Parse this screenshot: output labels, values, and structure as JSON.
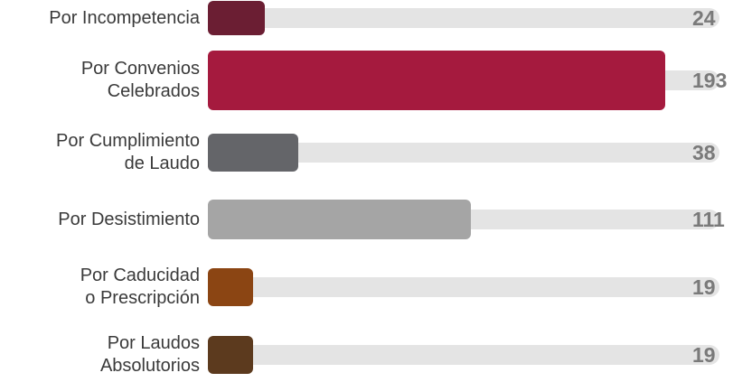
{
  "chart_data": {
    "type": "bar",
    "orientation": "horizontal",
    "categories": [
      "Por  Incompetencia",
      "Por Convenios\nCelebrados",
      "Por Cumplimiento\nde Laudo",
      "Por  Desistimiento",
      "Por Caducidad\no Prescripción",
      "Por Laudos\nAbsolutorios"
    ],
    "values": [
      24,
      193,
      38,
      111,
      19,
      19
    ],
    "value_labels": [
      "24",
      "193",
      "38",
      "111",
      "19",
      "19"
    ],
    "bar_colors": [
      "#6b1e33",
      "#a51a3e",
      "#646569",
      "#a5a5a5",
      "#8b4513",
      "#5c3a1e"
    ],
    "track_color": "#e4e4e4",
    "xlim": [
      0,
      216
    ],
    "title": "",
    "xlabel": "",
    "ylabel": "",
    "grid": false,
    "legend": "none"
  }
}
